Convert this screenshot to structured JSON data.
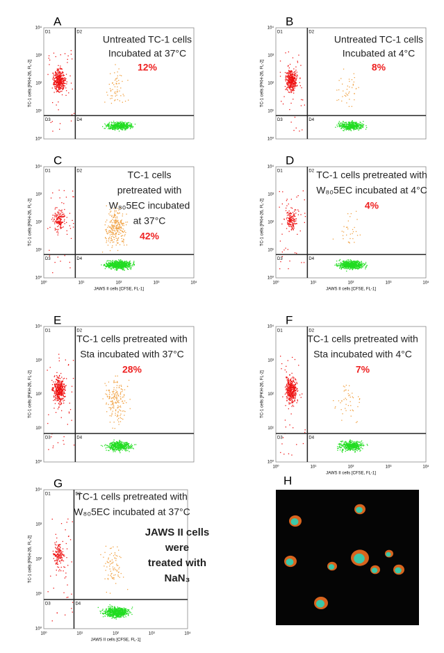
{
  "panels": [
    {
      "letter": "A",
      "quadrants": [
        "D1",
        "D2",
        "D3",
        "D4"
      ],
      "yticks": [
        "10⁰",
        "10¹",
        "10²",
        "10³",
        "10⁴"
      ],
      "y_axis_label": "TC-1 cells [PKH-26, FL-2]",
      "annotation": [
        "Untreated TC-1 cells",
        "Incubated at 37°C"
      ],
      "percent": "12%"
    },
    {
      "letter": "B",
      "quadrants": [
        "D1",
        "D2",
        "D3",
        "D4"
      ],
      "yticks": [
        "10⁰",
        "10¹",
        "10²",
        "10³",
        "10⁴"
      ],
      "y_axis_label": "TC-1 cells [PKH-26, FL-2]",
      "annotation": [
        "Untreated TC-1 cells",
        "Incubated at 4°C"
      ],
      "percent": "8%"
    },
    {
      "letter": "C",
      "quadrants": [
        "D1",
        "D2",
        "D3",
        "D4"
      ],
      "yticks": [
        "10⁰",
        "10¹",
        "10²",
        "10³",
        "10⁴"
      ],
      "y_axis_label": "TC-1 cells [PKH-26, FL-2]",
      "xticks": [
        "10⁰",
        "10¹",
        "10²",
        "10³",
        "10⁴"
      ],
      "x_axis_label": "JAWS II cells [CFSE, FL-1]",
      "annotation": [
        "TC-1 cells",
        "pretreated with",
        "W₈₀5EC incubated",
        "at 37°C"
      ],
      "percent": "42%"
    },
    {
      "letter": "D",
      "quadrants": [
        "D1",
        "D2",
        "D3",
        "D4"
      ],
      "yticks": [
        "10⁰",
        "10¹",
        "10²",
        "10³",
        "10⁴"
      ],
      "y_axis_label": "TC-1 cells [PKH-26, FL-2]",
      "xticks": [
        "10⁰",
        "10¹",
        "10²",
        "10³",
        "10⁴"
      ],
      "x_axis_label": "JAWS II cells [CFSE, FL-1]",
      "annotation": [
        "TC-1 cells pretreated with",
        "W₈₀5EC incubated at 4°C"
      ],
      "percent": "4%"
    },
    {
      "letter": "E",
      "quadrants": [
        "D1",
        "D2",
        "D3",
        "D4"
      ],
      "yticks": [
        "10⁰",
        "10¹",
        "10²",
        "10³",
        "10⁴"
      ],
      "y_axis_label": "TC-1 cells [PKH-26, FL-2]",
      "annotation": [
        "TC-1 cells pretreated with",
        "Sta incubated with 37°C"
      ],
      "percent": "28%"
    },
    {
      "letter": "F",
      "quadrants": [
        "D1",
        "D2",
        "D3",
        "D4"
      ],
      "yticks": [
        "10⁰",
        "10¹",
        "10²",
        "10³",
        "10⁴"
      ],
      "y_axis_label": "TC-1 cells [PKH-26, FL-2]",
      "xticks": [
        "10⁰",
        "10¹",
        "10²",
        "10³",
        "10⁴"
      ],
      "x_axis_label": "JAWS II cells [CFSE, FL-1]",
      "annotation": [
        "TC-1 cells pretreated with",
        "Sta incubated with 4°C"
      ],
      "percent": "7%"
    },
    {
      "letter": "G",
      "quadrants": [
        "D1",
        "D2",
        "D3",
        "D4"
      ],
      "yticks": [
        "10⁰",
        "10¹",
        "10²",
        "10³",
        "10⁴"
      ],
      "y_axis_label": "TC-1 cells [PKH-26, FL-2]",
      "xticks": [
        "10⁰",
        "10¹",
        "10²",
        "10³",
        "10⁴"
      ],
      "x_axis_label": "JAWS II cells [CFSE, FL-1]",
      "annotation": [
        "TC-1 cells pretreated with",
        "W₈₀5EC incubated at 37°C"
      ],
      "note": [
        "JAWS II cells",
        "were",
        "treated with",
        "NaN₃"
      ]
    }
  ],
  "panel_h": {
    "letter": "H"
  }
}
